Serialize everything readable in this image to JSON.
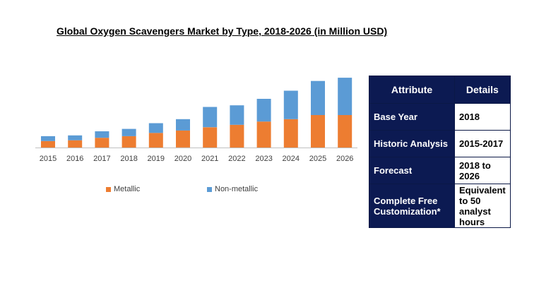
{
  "title": "Global Oxygen Scavengers Market by Type, 2018-2026 (in Million USD)",
  "chart_data": {
    "type": "bar",
    "stacked": true,
    "categories": [
      "2015",
      "2016",
      "2017",
      "2018",
      "2019",
      "2020",
      "2021",
      "2022",
      "2023",
      "2024",
      "2025",
      "2026"
    ],
    "series": [
      {
        "name": "Metallic",
        "color": "#ed7d31",
        "values": [
          8,
          9,
          12,
          14,
          18,
          21,
          25,
          28,
          32,
          35,
          40,
          40
        ]
      },
      {
        "name": "Non-metallic",
        "color": "#5b9bd5",
        "values": [
          6,
          6,
          8,
          9,
          12,
          14,
          25,
          24,
          28,
          35,
          42,
          46
        ]
      }
    ],
    "legend_position": "bottom",
    "grid": false
  },
  "table": {
    "headers": [
      "Attribute",
      "Details"
    ],
    "rows": [
      {
        "attribute": "Base Year",
        "details": "2018"
      },
      {
        "attribute": "Historic Analysis",
        "details": "2015-2017"
      },
      {
        "attribute": "Forecast",
        "details": "2018 to 2026"
      },
      {
        "attribute": "Complete Free Customization*",
        "details": "Equivalent to 50 analyst hours"
      }
    ]
  }
}
